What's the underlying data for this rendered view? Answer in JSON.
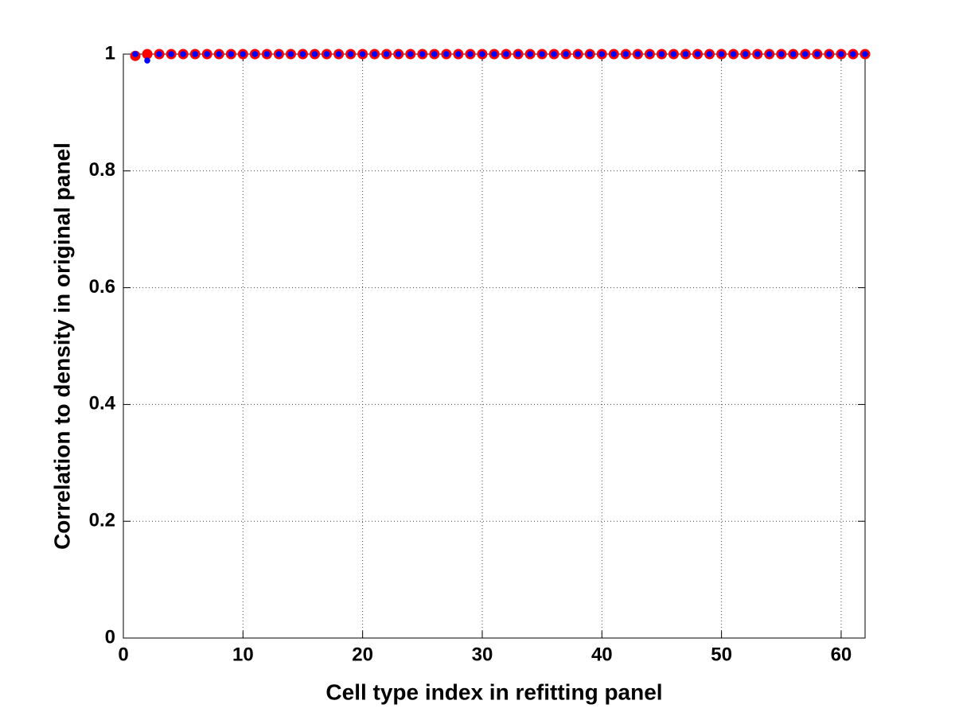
{
  "chart_data": {
    "type": "scatter",
    "xlabel": "Cell type index in refitting panel",
    "ylabel": "Correlation to density in original panel",
    "x": [
      1,
      2,
      3,
      4,
      5,
      6,
      7,
      8,
      9,
      10,
      11,
      12,
      13,
      14,
      15,
      16,
      17,
      18,
      19,
      20,
      21,
      22,
      23,
      24,
      25,
      26,
      27,
      28,
      29,
      30,
      31,
      32,
      33,
      34,
      35,
      36,
      37,
      38,
      39,
      40,
      41,
      42,
      43,
      44,
      45,
      46,
      47,
      48,
      49,
      50,
      51,
      52,
      53,
      54,
      55,
      56,
      57,
      58,
      59,
      60,
      61,
      62
    ],
    "series": [
      {
        "color": "#ff0000",
        "values": [
          0.997,
          1,
          1,
          1,
          1,
          1,
          1,
          1,
          1,
          1,
          1,
          1,
          1,
          1,
          1,
          1,
          1,
          1,
          1,
          1,
          1,
          1,
          1,
          1,
          1,
          1,
          1,
          1,
          1,
          1,
          1,
          1,
          1,
          1,
          1,
          1,
          1,
          1,
          1,
          1,
          1,
          1,
          1,
          1,
          1,
          1,
          1,
          1,
          1,
          1,
          1,
          1,
          1,
          1,
          1,
          1,
          1,
          1,
          1,
          1,
          1,
          1
        ]
      },
      {
        "color": "#0000ff",
        "values": [
          1,
          0.989,
          1,
          1,
          1,
          1,
          1,
          1,
          1,
          1,
          1,
          1,
          1,
          1,
          1,
          1,
          1,
          1,
          1,
          1,
          1,
          1,
          1,
          1,
          1,
          1,
          1,
          1,
          1,
          1,
          1,
          1,
          1,
          1,
          1,
          1,
          1,
          1,
          1,
          1,
          1,
          1,
          1,
          1,
          1,
          1,
          1,
          1,
          1,
          1,
          1,
          1,
          1,
          1,
          1,
          1,
          1,
          1,
          1,
          1,
          1,
          1
        ]
      }
    ],
    "xlim": [
      0,
      62
    ],
    "xticks": [
      0,
      10,
      20,
      30,
      40,
      50,
      60
    ],
    "ylim": [
      0,
      1
    ],
    "yticks": [
      0,
      0.2,
      0.4,
      0.6,
      0.8,
      1
    ],
    "grid": true
  }
}
